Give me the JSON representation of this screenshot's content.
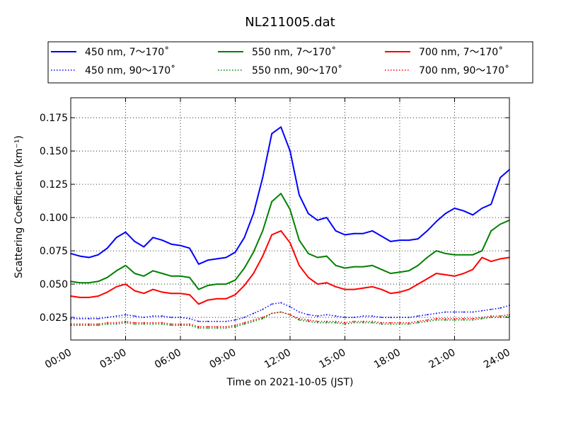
{
  "chart_data": {
    "type": "line",
    "title": "NL211005.dat",
    "xlabel": "Time on 2021-10-05 (JST)",
    "ylabel": "Scattering Coefficient (km⁻¹)",
    "xlim": [
      0,
      24
    ],
    "ylim": [
      0.008,
      0.19
    ],
    "xticks": [
      {
        "value": 0,
        "label": "00:00"
      },
      {
        "value": 3,
        "label": "03:00"
      },
      {
        "value": 6,
        "label": "06:00"
      },
      {
        "value": 9,
        "label": "09:00"
      },
      {
        "value": 12,
        "label": "12:00"
      },
      {
        "value": 15,
        "label": "15:00"
      },
      {
        "value": 18,
        "label": "18:00"
      },
      {
        "value": 21,
        "label": "21:00"
      },
      {
        "value": 24,
        "label": "24:00"
      }
    ],
    "yticks": [
      {
        "value": 0.025,
        "label": "0.025"
      },
      {
        "value": 0.05,
        "label": "0.050"
      },
      {
        "value": 0.075,
        "label": "0.075"
      },
      {
        "value": 0.1,
        "label": "0.100"
      },
      {
        "value": 0.125,
        "label": "0.125"
      },
      {
        "value": 0.15,
        "label": "0.150"
      },
      {
        "value": 0.175,
        "label": "0.175"
      }
    ],
    "grid": true,
    "legend_position": "top (above plot), 3 columns",
    "x": [
      0,
      0.5,
      1,
      1.5,
      2,
      2.5,
      3,
      3.5,
      4,
      4.5,
      5,
      5.5,
      6,
      6.5,
      7,
      7.5,
      8,
      8.5,
      9,
      9.5,
      10,
      10.5,
      11,
      11.5,
      12,
      12.5,
      13,
      13.5,
      14,
      14.5,
      15,
      15.5,
      16,
      16.5,
      17,
      17.5,
      18,
      18.5,
      19,
      19.5,
      20,
      20.5,
      21,
      21.5,
      22,
      22.5,
      23,
      23.5,
      24
    ],
    "series": [
      {
        "name": "450 nm, 7～170˚",
        "color": "#0000ff",
        "style": "solid",
        "values": [
          0.073,
          0.071,
          0.07,
          0.072,
          0.077,
          0.085,
          0.089,
          0.082,
          0.078,
          0.085,
          0.083,
          0.08,
          0.079,
          0.077,
          0.065,
          0.068,
          0.069,
          0.07,
          0.074,
          0.085,
          0.103,
          0.13,
          0.163,
          0.168,
          0.15,
          0.117,
          0.103,
          0.098,
          0.1,
          0.09,
          0.087,
          0.088,
          0.088,
          0.09,
          0.086,
          0.082,
          0.083,
          0.083,
          0.084,
          0.09,
          0.097,
          0.103,
          0.107,
          0.105,
          0.102,
          0.107,
          0.11,
          0.13,
          0.136
        ]
      },
      {
        "name": "550 nm, 7～170˚",
        "color": "#008000",
        "style": "solid",
        "values": [
          0.052,
          0.051,
          0.051,
          0.052,
          0.055,
          0.06,
          0.064,
          0.058,
          0.056,
          0.06,
          0.058,
          0.056,
          0.056,
          0.055,
          0.046,
          0.049,
          0.05,
          0.05,
          0.053,
          0.062,
          0.074,
          0.09,
          0.112,
          0.118,
          0.106,
          0.083,
          0.073,
          0.07,
          0.071,
          0.064,
          0.062,
          0.063,
          0.063,
          0.064,
          0.061,
          0.058,
          0.059,
          0.06,
          0.064,
          0.07,
          0.075,
          0.073,
          0.072,
          0.072,
          0.072,
          0.075,
          0.09,
          0.095,
          0.098
        ]
      },
      {
        "name": "700 nm, 7～170˚",
        "color": "#ff0000",
        "style": "solid",
        "values": [
          0.041,
          0.04,
          0.04,
          0.041,
          0.044,
          0.048,
          0.05,
          0.045,
          0.043,
          0.046,
          0.044,
          0.043,
          0.043,
          0.042,
          0.035,
          0.038,
          0.039,
          0.039,
          0.042,
          0.049,
          0.058,
          0.071,
          0.087,
          0.09,
          0.081,
          0.064,
          0.055,
          0.05,
          0.051,
          0.048,
          0.046,
          0.046,
          0.047,
          0.048,
          0.046,
          0.043,
          0.044,
          0.046,
          0.05,
          0.054,
          0.058,
          0.057,
          0.056,
          0.058,
          0.061,
          0.07,
          0.067,
          0.069,
          0.07
        ]
      },
      {
        "name": "450 nm, 90～170˚",
        "color": "#0000ff",
        "style": "dotted",
        "values": [
          0.024,
          0.024,
          0.024,
          0.024,
          0.025,
          0.026,
          0.027,
          0.026,
          0.025,
          0.026,
          0.026,
          0.025,
          0.025,
          0.024,
          0.022,
          0.022,
          0.022,
          0.022,
          0.023,
          0.025,
          0.028,
          0.031,
          0.035,
          0.036,
          0.033,
          0.029,
          0.027,
          0.026,
          0.027,
          0.026,
          0.025,
          0.025,
          0.026,
          0.026,
          0.025,
          0.025,
          0.025,
          0.025,
          0.026,
          0.027,
          0.028,
          0.029,
          0.029,
          0.029,
          0.029,
          0.03,
          0.031,
          0.032,
          0.034
        ]
      },
      {
        "name": "550 nm, 90～170˚",
        "color": "#008000",
        "style": "dotted",
        "values": [
          0.019,
          0.019,
          0.019,
          0.019,
          0.02,
          0.02,
          0.021,
          0.02,
          0.02,
          0.02,
          0.02,
          0.019,
          0.019,
          0.019,
          0.017,
          0.017,
          0.017,
          0.017,
          0.018,
          0.02,
          0.022,
          0.024,
          0.028,
          0.029,
          0.027,
          0.023,
          0.022,
          0.021,
          0.021,
          0.021,
          0.02,
          0.021,
          0.021,
          0.021,
          0.02,
          0.02,
          0.02,
          0.02,
          0.021,
          0.022,
          0.023,
          0.023,
          0.023,
          0.023,
          0.023,
          0.024,
          0.025,
          0.025,
          0.026
        ]
      },
      {
        "name": "700 nm, 90～170˚",
        "color": "#ff0000",
        "style": "dotted",
        "values": [
          0.02,
          0.02,
          0.02,
          0.02,
          0.021,
          0.021,
          0.022,
          0.021,
          0.021,
          0.021,
          0.021,
          0.02,
          0.02,
          0.02,
          0.018,
          0.018,
          0.018,
          0.018,
          0.019,
          0.021,
          0.023,
          0.025,
          0.028,
          0.029,
          0.027,
          0.024,
          0.023,
          0.022,
          0.022,
          0.022,
          0.021,
          0.022,
          0.022,
          0.022,
          0.021,
          0.021,
          0.021,
          0.021,
          0.022,
          0.023,
          0.024,
          0.024,
          0.024,
          0.024,
          0.024,
          0.025,
          0.026,
          0.026,
          0.027
        ]
      }
    ]
  }
}
